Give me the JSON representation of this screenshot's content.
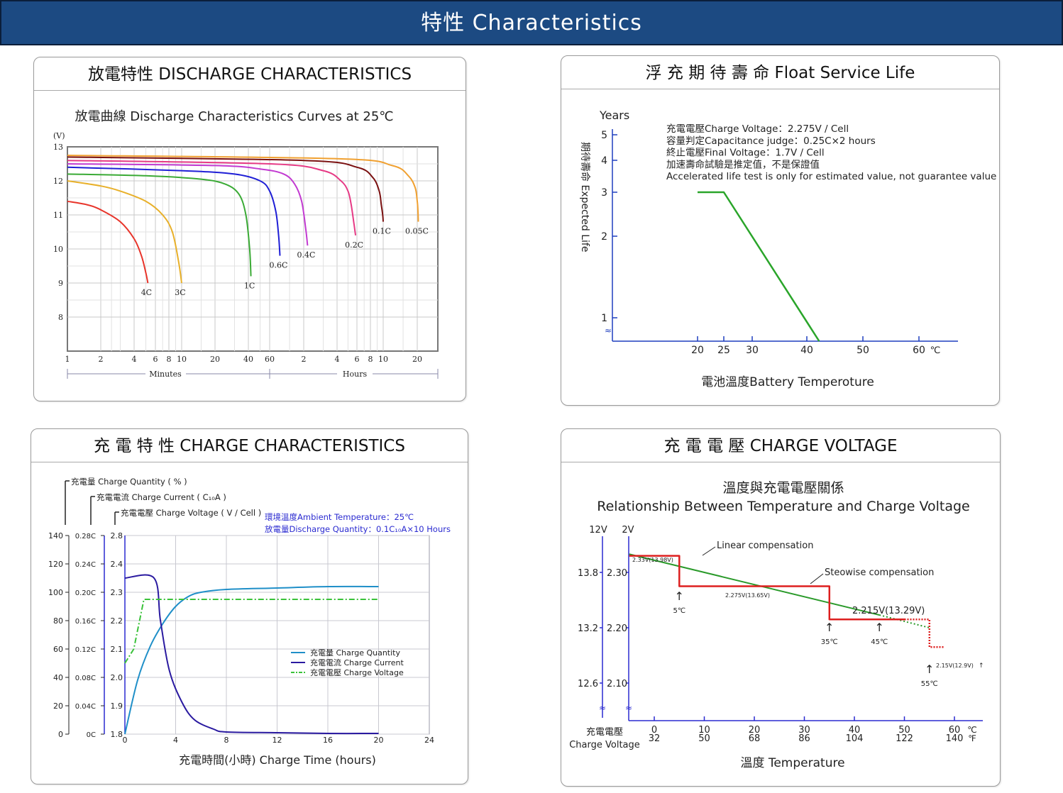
{
  "banner": {
    "title": "特性  Characteristics"
  },
  "panels": {
    "discharge": {
      "title": "放電特性 DISCHARGE CHARACTERISTICS"
    },
    "float": {
      "title": "浮 充 期 待 壽 命 Float Service Life"
    },
    "charge": {
      "title": "充 電 特 性  CHARGE CHARACTERISTICS"
    },
    "voltage": {
      "title": "充 電 電 壓  CHARGE VOLTAGE"
    }
  },
  "chart_data": [
    {
      "id": "discharge",
      "type": "line",
      "title": "放電曲線 Discharge Characteristics Curves at 25℃",
      "y_unit": "(V)",
      "ylim": [
        7,
        13
      ],
      "y_ticks": [
        "13",
        "12",
        "11",
        "10",
        "9",
        "8"
      ],
      "x_ticks": [
        "1",
        "2",
        "4",
        "6",
        "8",
        "10",
        "20",
        "40",
        "60",
        "2",
        "4",
        "6",
        "8",
        "10",
        "20"
      ],
      "x_label_minutes": "Minutes",
      "x_label_hours": "Hours",
      "grid": true,
      "series": [
        {
          "name": "4C",
          "color": "#e8342a",
          "x_minutes": [
            1,
            1.5,
            2,
            3,
            4,
            4.6,
            5,
            5.2
          ],
          "y": [
            11.4,
            11.3,
            11.15,
            10.8,
            10.3,
            9.8,
            9.3,
            9.0
          ]
        },
        {
          "name": "3C",
          "color": "#e8b02a",
          "x_minutes": [
            1,
            2,
            3,
            5,
            7,
            8.5,
            9.5,
            10
          ],
          "y": [
            12.0,
            11.85,
            11.7,
            11.4,
            11.0,
            10.5,
            9.6,
            9.0
          ]
        },
        {
          "name": "1C",
          "color": "#3aaa35",
          "x_minutes": [
            1,
            5,
            15,
            25,
            33,
            38,
            41,
            42
          ],
          "y": [
            12.2,
            12.15,
            12.05,
            11.9,
            11.6,
            11.0,
            10.0,
            9.2
          ]
        },
        {
          "name": "0.6C",
          "color": "#1f1fd6",
          "x_minutes": [
            1,
            10,
            30,
            50,
            60,
            68,
            72,
            74
          ],
          "y": [
            12.4,
            12.3,
            12.2,
            12.0,
            11.7,
            11.1,
            10.4,
            9.8
          ]
        },
        {
          "name": "0.4C",
          "color": "#c23ad1",
          "x_minutes": [
            1,
            20,
            50,
            80,
            100,
            115,
            125,
            130
          ],
          "y": [
            12.5,
            12.45,
            12.35,
            12.2,
            11.9,
            11.4,
            10.6,
            10.1
          ]
        },
        {
          "name": "0.2C",
          "color": "#e63a85",
          "x_minutes": [
            1,
            60,
            180,
            260,
            300,
            320,
            340,
            350
          ],
          "y": [
            12.6,
            12.5,
            12.3,
            12.0,
            11.7,
            11.3,
            10.7,
            10.4
          ]
        },
        {
          "name": "0.1C",
          "color": "#7a1010",
          "x_minutes": [
            1,
            120,
            360,
            500,
            560,
            580,
            595,
            600
          ],
          "y": [
            12.7,
            12.6,
            12.4,
            12.1,
            11.7,
            11.3,
            11.0,
            10.8
          ]
        },
        {
          "name": "0.05C",
          "color": "#f0a030",
          "x_minutes": [
            1,
            240,
            720,
            1000,
            1150,
            1200,
            1220,
            1230
          ],
          "y": [
            12.75,
            12.65,
            12.45,
            12.15,
            11.8,
            11.4,
            11.1,
            10.8
          ]
        }
      ]
    },
    {
      "id": "float",
      "type": "line",
      "y_label_top": "Years",
      "y_label": "期待壽命 Expected Life",
      "y_ticks": [
        "5",
        "4",
        "3",
        "2",
        "1"
      ],
      "x_label": "電池溫度Battery Temperoture",
      "x_ticks": [
        "20",
        "25",
        "30",
        "40",
        "50",
        "60"
      ],
      "x_unit": "℃",
      "notes": [
        "充電電壓Charge Voltage：2.275V / Cell",
        "容量判定Capacitance judge：0.25C×2 hours",
        "終止電壓Final Voltage：1.7V / Cell",
        "加速壽命試驗是推定值，不是保證值",
        "Accelerated life test is only for estimated value, not guarantee value"
      ],
      "series": [
        {
          "color": "#2aa52a",
          "x": [
            20,
            25,
            42.2
          ],
          "y": [
            3,
            3,
            0.85
          ]
        }
      ]
    },
    {
      "id": "charge",
      "type": "line",
      "axis_titles": [
        "充電量  Charge Quantity ( % )",
        "充電電流  Charge Current ( C₁₀A )",
        "充電電壓  Charge Voltage ( V / Cell )"
      ],
      "conditions": [
        "環境溫度Ambient Temperature：25℃",
        "放電量Discharge Quantity：0.1C₁₀A×10 Hours"
      ],
      "x_label": "充電時間(小時)  Charge Time (hours)",
      "x_ticks": [
        "0",
        "4",
        "8",
        "12",
        "16",
        "20",
        "24"
      ],
      "y_quantity_ticks": [
        "140",
        "120",
        "100",
        "80",
        "60",
        "40",
        "20",
        "0"
      ],
      "y_current_ticks": [
        "0.28C",
        "0.24C",
        "0.20C",
        "0.16C",
        "0.12C",
        "0.08C",
        "0.04C",
        "0C"
      ],
      "y_voltage_ticks": [
        "2.8",
        "2.4",
        "2.3",
        "2.2",
        "2.1",
        "2.0",
        "1.9",
        "1.8"
      ],
      "legend": [
        {
          "label": "充電量      Charge Quantity",
          "color": "#1f8fc8"
        },
        {
          "label": "充電電流 Charge Current",
          "color": "#2a1aa0"
        },
        {
          "label": "充電電壓 Charge Voltage",
          "color": "#3ac23a"
        }
      ],
      "series": [
        {
          "name": "充電量      Charge Quantity",
          "color": "#1f8fc8",
          "x": [
            0,
            1,
            2,
            3,
            4,
            5,
            6,
            8,
            12,
            16,
            20
          ],
          "y": [
            0,
            38,
            62,
            78,
            90,
            97,
            100,
            102,
            103,
            104,
            104
          ]
        },
        {
          "name": "充電電流 Charge Current",
          "color": "#2a1aa0",
          "x": [
            0,
            2.3,
            2.8,
            3.5,
            4.5,
            5.5,
            7,
            8,
            12,
            16,
            20
          ],
          "y": [
            0.22,
            0.22,
            0.16,
            0.09,
            0.045,
            0.02,
            0.007,
            0.003,
            0.002,
            0.001,
            0.001
          ]
        },
        {
          "name": "充電電壓 Charge Voltage",
          "color": "#3ac23a",
          "dash": true,
          "x": [
            0,
            0.7,
            1.5,
            20
          ],
          "y": [
            2.05,
            2.1,
            2.275,
            2.275
          ]
        }
      ]
    },
    {
      "id": "voltage",
      "type": "line",
      "title": "溫度與充電電壓關係",
      "subtitle": "Relationship Between Temperature and Charge Voltage",
      "y_header_12v": "12V",
      "y_header_2v": "2V",
      "y_ticks_12v": [
        "13.8",
        "13.2",
        "12.6"
      ],
      "y_ticks_2v": [
        "2.30",
        "2.20",
        "2.10"
      ],
      "y_label": "充電電壓",
      "y_label2": "Charge Voltage",
      "x_label": "溫度   Temperature",
      "x_ticks_c": [
        "0",
        "10",
        "20",
        "30",
        "40",
        "50",
        "60"
      ],
      "x_ticks_f": [
        "32",
        "50",
        "68",
        "86",
        "104",
        "122",
        "140"
      ],
      "x_unit_c": "℃",
      "x_unit_f": "℉",
      "annotations": {
        "linear": "Linear compensation",
        "stepwise": "Steowise compensation",
        "v233": "2.33V(13.98V)",
        "v2275": "2.275V(13.65V)",
        "v2215": "2.215V(13.29V)",
        "v215": "2.15V(12.9V)",
        "t5": "5℃",
        "t35": "35℃",
        "t45": "45℃",
        "t55": "55℃"
      },
      "series": [
        {
          "name": "Linear compensation",
          "color": "#2a9a2a",
          "x": [
            -5,
            50
          ],
          "y": [
            2.333,
            2.213
          ]
        },
        {
          "name": "Steowise compensation",
          "color": "#dd1f1f",
          "x": [
            -5,
            5,
            5,
            35,
            35,
            50
          ],
          "y": [
            2.33,
            2.33,
            2.275,
            2.275,
            2.215,
            2.215
          ]
        }
      ]
    }
  ]
}
